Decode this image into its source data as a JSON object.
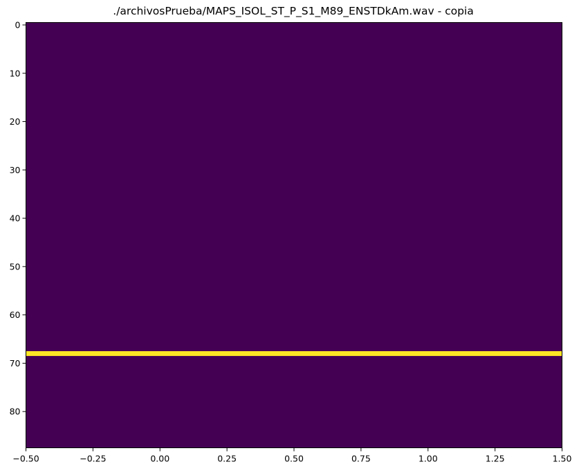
{
  "chart_data": {
    "type": "heatmap",
    "title": "./archivosPrueba/MAPS_ISOL_ST_P_S1_M89_ENSTDkAm.wav - copia",
    "xlabel": "",
    "ylabel": "",
    "xlim": [
      -0.5,
      1.5
    ],
    "ylim": [
      87.5,
      -0.5
    ],
    "y_inverted": true,
    "x_ticks": [
      -0.5,
      -0.25,
      0.0,
      0.25,
      0.5,
      0.75,
      1.0,
      1.25,
      1.5
    ],
    "x_tick_labels": [
      "−0.50",
      "−0.25",
      "0.00",
      "0.25",
      "0.50",
      "0.75",
      "1.00",
      "1.25",
      "1.50"
    ],
    "y_ticks": [
      0,
      10,
      20,
      30,
      40,
      50,
      60,
      70,
      80
    ],
    "y_tick_labels": [
      "0",
      "10",
      "20",
      "30",
      "40",
      "50",
      "60",
      "70",
      "80"
    ],
    "columns": [
      0,
      1
    ],
    "rows": 88,
    "background_value": 0,
    "active_rows": [
      68
    ],
    "active_value": 1,
    "grid": false,
    "legend": "none",
    "colors": {
      "low": "#440154",
      "high": "#fde725"
    }
  }
}
